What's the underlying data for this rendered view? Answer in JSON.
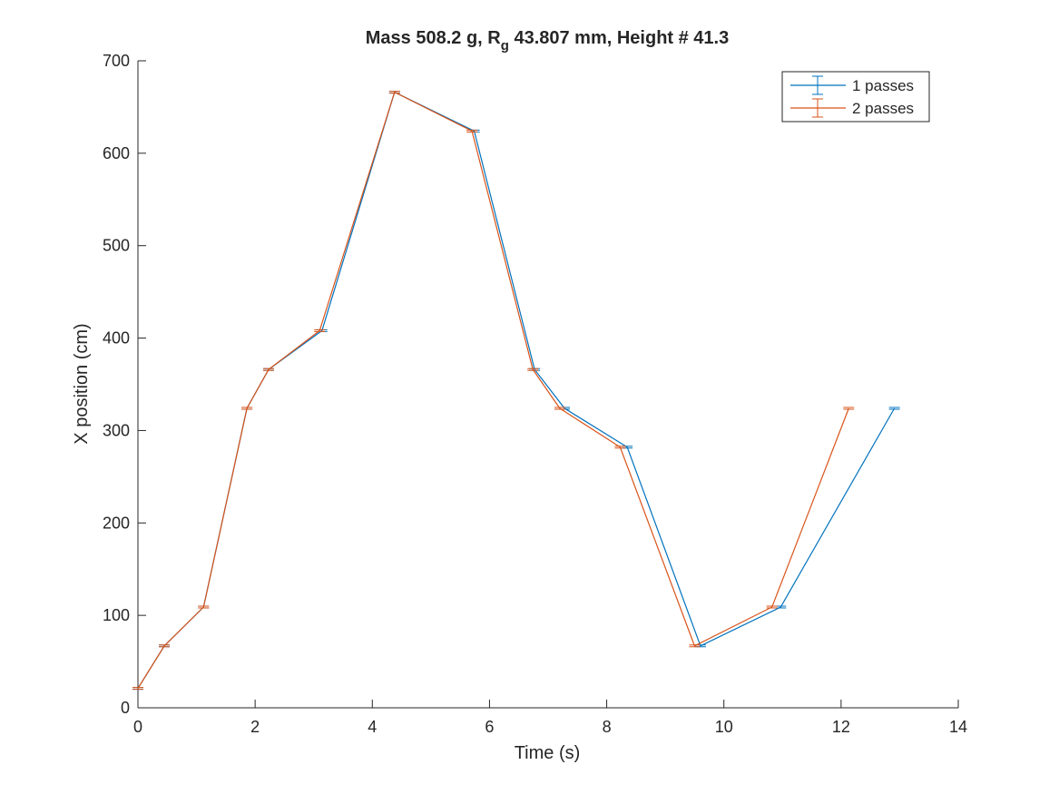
{
  "chart_data": {
    "type": "line",
    "title": {
      "prefix": "Mass 508.2 g, R",
      "subscript": "g",
      "suffix": " 43.807 mm,  Height # 41.3"
    },
    "xlabel": "Time (s)",
    "ylabel": "X position (cm)",
    "xlim": [
      0,
      14
    ],
    "ylim": [
      0,
      700
    ],
    "xticks": [
      0,
      2,
      4,
      6,
      8,
      10,
      12,
      14
    ],
    "yticks": [
      0,
      100,
      200,
      300,
      400,
      500,
      600,
      700
    ],
    "grid": false,
    "legend_position": "top-right",
    "error_bar_style": "tiny",
    "series": [
      {
        "name": "1 passes",
        "color": "#0072BD",
        "x": [
          0,
          0.45,
          1.12,
          1.86,
          2.23,
          3.14,
          4.38,
          5.74,
          6.77,
          7.28,
          8.35,
          9.6,
          10.97,
          12.91
        ],
        "y": [
          21,
          67,
          109,
          324,
          366,
          408,
          666,
          624,
          366,
          324,
          282,
          67,
          109,
          324
        ]
      },
      {
        "name": "2 passes",
        "color": "#D95319",
        "x": [
          0,
          0.45,
          1.12,
          1.86,
          2.23,
          3.1,
          4.38,
          5.7,
          6.74,
          7.2,
          8.23,
          9.5,
          10.82,
          12.13
        ],
        "y": [
          21,
          67,
          109,
          324,
          366,
          408,
          666,
          624,
          366,
          324,
          282,
          67,
          109,
          324
        ]
      }
    ]
  }
}
